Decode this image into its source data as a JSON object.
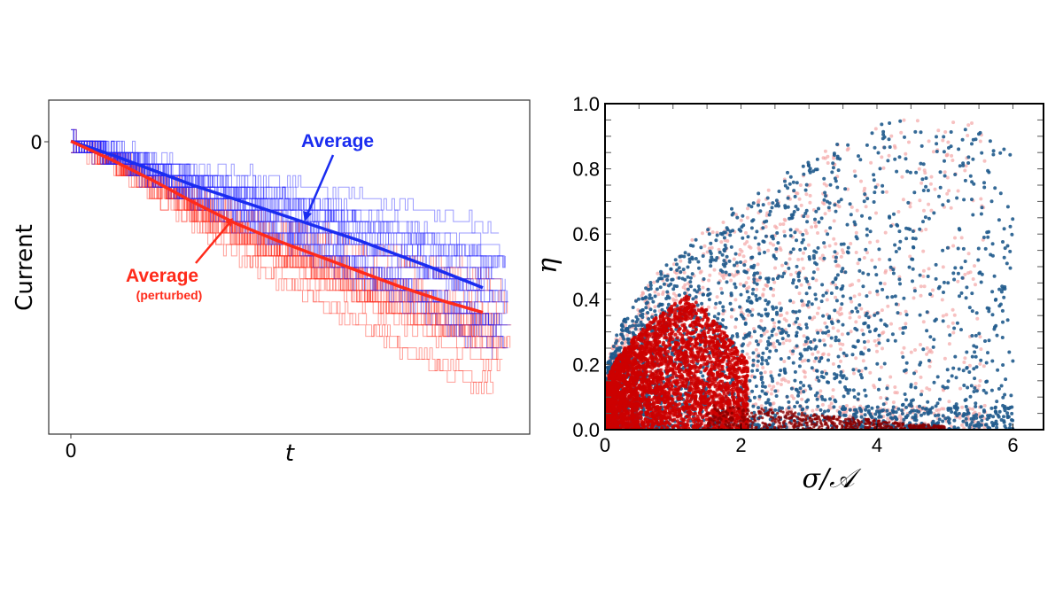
{
  "chart_data": [
    {
      "type": "line",
      "xlabel": "t",
      "ylabel": "Current",
      "x_ticks": [
        "0"
      ],
      "y_ticks": [
        "0"
      ],
      "xlim": [
        -0.054,
        1.114
      ],
      "ylim": [
        -1.71,
        0.24
      ],
      "grid": false,
      "colors": {
        "unperturbed": "#2222ff",
        "perturbed": "#ff2a1a"
      },
      "series": [
        {
          "name": "Average",
          "color": "#1a2cf0",
          "x": [
            0,
            0.1,
            0.2,
            0.3,
            0.4,
            0.5,
            0.6,
            0.7,
            0.8,
            0.9,
            1.0
          ],
          "y": [
            0,
            -0.08,
            -0.17,
            -0.26,
            -0.34,
            -0.42,
            -0.5,
            -0.58,
            -0.67,
            -0.76,
            -0.855
          ]
        },
        {
          "name": "Average (perturbed)",
          "color": "#ff2a1a",
          "x": [
            0,
            0.1,
            0.2,
            0.3,
            0.4,
            0.5,
            0.6,
            0.7,
            0.8,
            0.9,
            1.0
          ],
          "y": [
            0,
            -0.11,
            -0.23,
            -0.36,
            -0.48,
            -0.58,
            -0.67,
            -0.76,
            -0.85,
            -0.93,
            -1.0
          ]
        }
      ],
      "annotations": [
        {
          "text": "Average",
          "color": "#1a2cf0"
        },
        {
          "text": "Average",
          "subtext": "(perturbed)",
          "color": "#ff2a1a"
        }
      ]
    },
    {
      "type": "scatter",
      "xlabel": "σ/𝒜",
      "ylabel": "η",
      "xlim": [
        0,
        6.45
      ],
      "ylim": [
        0,
        1.0
      ],
      "x_ticks": [
        "0",
        "2",
        "4",
        "6"
      ],
      "y_ticks": [
        "0.0",
        "0.2",
        "0.4",
        "0.6",
        "0.8",
        "1.0"
      ],
      "grid": false,
      "colors": {
        "blue_points": "#1f5a8c",
        "red_points": "#cc0000",
        "light_red_points": "#f4a6a6"
      }
    }
  ]
}
